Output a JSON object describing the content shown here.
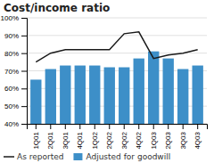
{
  "chart_data": {
    "type": "bar",
    "title": "Cost/income ratio",
    "categories": [
      "1Q01",
      "2Q01",
      "3Q01",
      "4Q01",
      "1Q02",
      "2Q02",
      "3Q02",
      "4Q02",
      "1Q03",
      "2Q03",
      "3Q03",
      "4Q03"
    ],
    "series": [
      {
        "name": "As reported",
        "type": "line",
        "color": "#1a1a1a",
        "values": [
          75,
          80,
          82,
          82,
          82,
          82,
          91,
          92,
          77,
          79,
          80,
          82
        ]
      },
      {
        "name": "Adjusted for goodwill",
        "type": "bar",
        "color": "#3d8fc8",
        "values": [
          65,
          71,
          73,
          73,
          73,
          72,
          72,
          77,
          81,
          77,
          71,
          73
        ]
      }
    ],
    "ylim": [
      40,
      100
    ],
    "yticks": [
      {
        "value": 40,
        "label": "40%"
      },
      {
        "value": 50,
        "label": "50%"
      },
      {
        "value": 60,
        "label": "60%"
      },
      {
        "value": 70,
        "label": "70%"
      },
      {
        "value": 80,
        "label": "80%"
      },
      {
        "value": 90,
        "label": "90%"
      },
      {
        "value": 100,
        "label": "100%"
      }
    ],
    "grid": true,
    "legend": "bottom"
  }
}
